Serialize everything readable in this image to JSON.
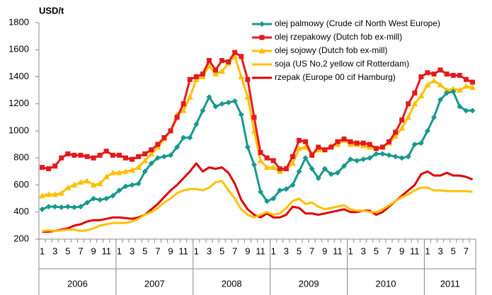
{
  "chart_data": {
    "type": "line",
    "title": "USD/t",
    "categories": [
      "1",
      null,
      "3",
      null,
      "5",
      null,
      "7",
      null,
      "9",
      null,
      "11",
      null,
      "1",
      null,
      "3",
      null,
      "5",
      null,
      "7",
      null,
      "9",
      null,
      "11",
      null,
      "1",
      null,
      "3",
      null,
      "5",
      null,
      "7",
      null,
      "9",
      null,
      "11",
      null,
      "1",
      null,
      "3",
      null,
      "5",
      null,
      "7",
      null,
      "9",
      null,
      "11",
      null,
      "1",
      null,
      "3",
      null,
      "5",
      null,
      "7",
      null,
      "9",
      null,
      "11",
      null,
      "1",
      null,
      "3",
      null,
      "5",
      null,
      "7",
      null
    ],
    "category_groups": [
      "2006",
      "2007",
      "2008",
      "2009",
      "2010",
      "2011"
    ],
    "ylim": [
      200,
      1800
    ],
    "yticks": [
      200,
      400,
      600,
      800,
      1000,
      1200,
      1400,
      1600,
      1800
    ],
    "grid": false,
    "legend": "top-right",
    "series": [
      {
        "name": "olej palmowy  (Crude cif North West Europe)",
        "color": "#17998c",
        "marker": "diamond",
        "values": [
          420,
          440,
          440,
          435,
          440,
          435,
          440,
          470,
          500,
          490,
          500,
          520,
          560,
          590,
          600,
          610,
          700,
          760,
          800,
          810,
          820,
          880,
          950,
          950,
          1050,
          1150,
          1250,
          1180,
          1200,
          1210,
          1220,
          1120,
          880,
          750,
          550,
          480,
          500,
          560,
          570,
          600,
          700,
          800,
          720,
          650,
          720,
          680,
          690,
          740,
          790,
          780,
          790,
          800,
          830,
          830,
          820,
          810,
          800,
          810,
          900,
          910,
          1000,
          1100,
          1230,
          1280,
          1290,
          1180,
          1150,
          1150
        ]
      },
      {
        "name": "olej rzepakowy (Dutch fob ex-mill)",
        "color": "#e31a1c",
        "marker": "square",
        "values": [
          730,
          720,
          740,
          800,
          830,
          820,
          820,
          810,
          800,
          820,
          850,
          820,
          820,
          800,
          790,
          810,
          830,
          860,
          900,
          950,
          1000,
          1100,
          1200,
          1380,
          1400,
          1420,
          1520,
          1450,
          1520,
          1510,
          1580,
          1550,
          1380,
          1100,
          840,
          800,
          780,
          720,
          720,
          810,
          930,
          920,
          820,
          880,
          860,
          880,
          920,
          940,
          920,
          910,
          910,
          900,
          870,
          880,
          920,
          990,
          1080,
          1200,
          1280,
          1400,
          1430,
          1420,
          1450,
          1420,
          1410,
          1410,
          1380,
          1360
        ]
      },
      {
        "name": "olej sojowy (Dutch fob ex-mill)",
        "color": "#ffc000",
        "marker": "triangle",
        "values": [
          520,
          530,
          530,
          540,
          580,
          600,
          620,
          630,
          600,
          610,
          660,
          690,
          690,
          700,
          710,
          730,
          780,
          830,
          880,
          940,
          1000,
          1120,
          1150,
          1250,
          1380,
          1400,
          1480,
          1420,
          1440,
          1500,
          1550,
          1400,
          1250,
          1000,
          780,
          730,
          730,
          700,
          720,
          760,
          870,
          880,
          830,
          860,
          860,
          890,
          900,
          930,
          900,
          900,
          890,
          880,
          870,
          880,
          910,
          960,
          1020,
          1100,
          1200,
          1260,
          1340,
          1370,
          1340,
          1300,
          1310,
          1300,
          1330,
          1320
        ]
      },
      {
        "name": "soja (US No,2 yellow cif Rotterdam)",
        "color": "#ffc000",
        "marker": null,
        "values": [
          260,
          265,
          260,
          265,
          270,
          270,
          260,
          265,
          280,
          300,
          310,
          320,
          320,
          320,
          330,
          350,
          380,
          400,
          430,
          470,
          500,
          540,
          560,
          570,
          570,
          560,
          580,
          620,
          630,
          560,
          500,
          420,
          380,
          360,
          380,
          400,
          380,
          390,
          430,
          480,
          500,
          460,
          470,
          440,
          420,
          430,
          440,
          450,
          420,
          410,
          410,
          400,
          400,
          420,
          450,
          480,
          510,
          530,
          560,
          580,
          580,
          560,
          560,
          555,
          555,
          555,
          555,
          550
        ]
      },
      {
        "name": "rzepak (Europe 00 cif Hamburg)",
        "color": "#e00000",
        "marker": null,
        "values": [
          255,
          255,
          260,
          270,
          280,
          300,
          310,
          330,
          340,
          340,
          350,
          360,
          360,
          355,
          350,
          360,
          380,
          420,
          460,
          510,
          560,
          600,
          650,
          700,
          760,
          700,
          730,
          720,
          730,
          690,
          610,
          490,
          420,
          380,
          360,
          390,
          360,
          360,
          380,
          440,
          430,
          390,
          390,
          380,
          390,
          400,
          410,
          420,
          400,
          400,
          410,
          410,
          380,
          400,
          440,
          480,
          520,
          560,
          600,
          680,
          700,
          670,
          670,
          690,
          670,
          670,
          660,
          640
        ]
      }
    ]
  }
}
